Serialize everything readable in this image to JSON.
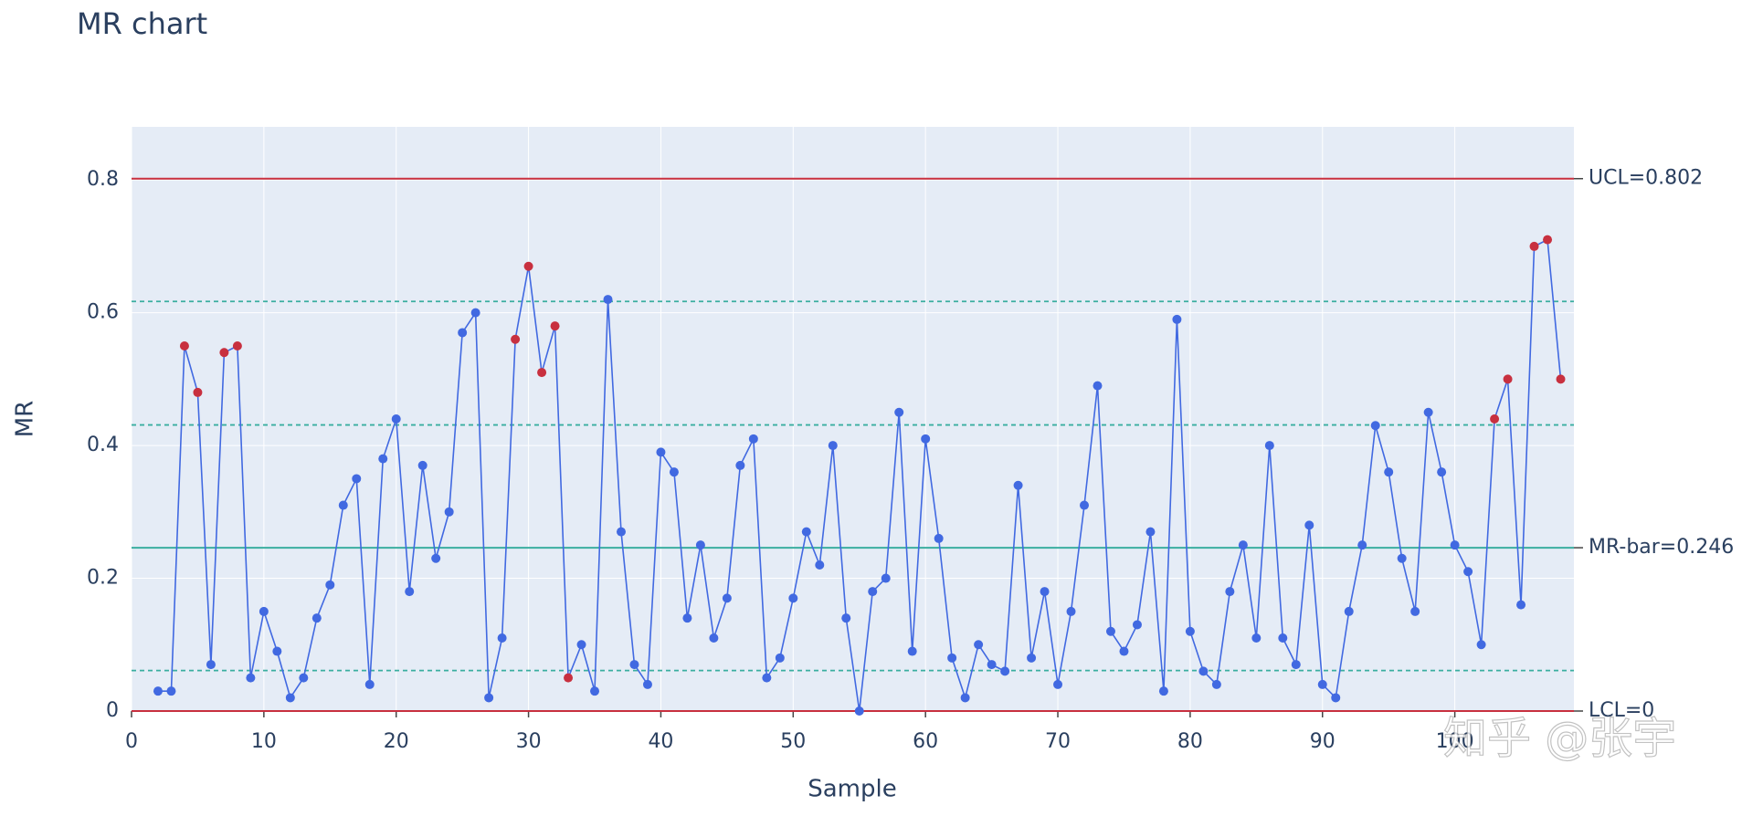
{
  "chart_data": {
    "type": "line",
    "title": "MR chart",
    "x_label": "Sample",
    "y_label": "MR",
    "x": [
      2,
      3,
      4,
      5,
      6,
      7,
      8,
      9,
      10,
      11,
      12,
      13,
      14,
      15,
      16,
      17,
      18,
      19,
      20,
      21,
      22,
      23,
      24,
      25,
      26,
      27,
      28,
      29,
      30,
      31,
      32,
      33,
      34,
      35,
      36,
      37,
      38,
      39,
      40,
      41,
      42,
      43,
      44,
      45,
      46,
      47,
      48,
      49,
      50,
      51,
      52,
      53,
      54,
      55,
      56,
      57,
      58,
      59,
      60,
      61,
      62,
      63,
      64,
      65,
      66,
      67,
      68,
      69,
      70,
      71,
      72,
      73,
      74,
      75,
      76,
      77,
      78,
      79,
      80,
      81,
      82,
      83,
      84,
      85,
      86,
      87,
      88,
      89,
      90,
      91,
      92,
      93,
      94,
      95,
      96,
      97,
      98,
      99,
      100,
      101,
      102,
      103,
      104,
      105,
      106,
      107,
      108
    ],
    "series": [
      {
        "color": "#4169e1",
        "values": [
          0.03,
          0.03,
          0.55,
          0.48,
          0.07,
          0.54,
          0.55,
          0.05,
          0.15,
          0.09,
          0.02,
          0.05,
          0.14,
          0.19,
          0.31,
          0.35,
          0.04,
          0.38,
          0.44,
          0.18,
          0.37,
          0.23,
          0.3,
          0.57,
          0.6,
          0.02,
          0.11,
          0.56,
          0.67,
          0.51,
          0.58,
          0.05,
          0.1,
          0.03,
          0.62,
          0.27,
          0.07,
          0.04,
          0.39,
          0.36,
          0.14,
          0.25,
          0.11,
          0.17,
          0.37,
          0.41,
          0.05,
          0.08,
          0.17,
          0.27,
          0.22,
          0.4,
          0.14,
          0.0,
          0.18,
          0.2,
          0.45,
          0.09,
          0.41,
          0.26,
          0.08,
          0.02,
          0.1,
          0.07,
          0.06,
          0.34,
          0.08,
          0.18,
          0.04,
          0.15,
          0.31,
          0.49,
          0.12,
          0.09,
          0.13,
          0.27,
          0.03,
          0.59,
          0.12,
          0.06,
          0.04,
          0.18,
          0.25,
          0.11,
          0.4,
          0.11,
          0.07,
          0.28,
          0.04,
          0.02,
          0.15,
          0.25,
          0.43,
          0.36,
          0.23,
          0.15,
          0.45,
          0.36,
          0.25,
          0.21,
          0.1,
          0.44,
          0.5,
          0.16,
          0.7,
          0.71,
          0.5
        ],
        "marker_colors": [
          "#4169e1",
          "#4169e1",
          "#c8303f",
          "#c8303f",
          "#4169e1",
          "#c8303f",
          "#c8303f",
          "#4169e1",
          "#4169e1",
          "#4169e1",
          "#4169e1",
          "#4169e1",
          "#4169e1",
          "#4169e1",
          "#4169e1",
          "#4169e1",
          "#4169e1",
          "#4169e1",
          "#4169e1",
          "#4169e1",
          "#4169e1",
          "#4169e1",
          "#4169e1",
          "#4169e1",
          "#4169e1",
          "#4169e1",
          "#4169e1",
          "#c8303f",
          "#c8303f",
          "#c8303f",
          "#c8303f",
          "#c8303f",
          "#4169e1",
          "#4169e1",
          "#4169e1",
          "#4169e1",
          "#4169e1",
          "#4169e1",
          "#4169e1",
          "#4169e1",
          "#4169e1",
          "#4169e1",
          "#4169e1",
          "#4169e1",
          "#4169e1",
          "#4169e1",
          "#4169e1",
          "#4169e1",
          "#4169e1",
          "#4169e1",
          "#4169e1",
          "#4169e1",
          "#4169e1",
          "#4169e1",
          "#4169e1",
          "#4169e1",
          "#4169e1",
          "#4169e1",
          "#4169e1",
          "#4169e1",
          "#4169e1",
          "#4169e1",
          "#4169e1",
          "#4169e1",
          "#4169e1",
          "#4169e1",
          "#4169e1",
          "#4169e1",
          "#4169e1",
          "#4169e1",
          "#4169e1",
          "#4169e1",
          "#4169e1",
          "#4169e1",
          "#4169e1",
          "#4169e1",
          "#4169e1",
          "#4169e1",
          "#4169e1",
          "#4169e1",
          "#4169e1",
          "#4169e1",
          "#4169e1",
          "#4169e1",
          "#4169e1",
          "#4169e1",
          "#4169e1",
          "#4169e1",
          "#4169e1",
          "#4169e1",
          "#4169e1",
          "#4169e1",
          "#4169e1",
          "#4169e1",
          "#4169e1",
          "#4169e1",
          "#4169e1",
          "#4169e1",
          "#4169e1",
          "#4169e1",
          "#4169e1",
          "#c8303f",
          "#c8303f",
          "#4169e1",
          "#c8303f",
          "#c8303f",
          "#c8303f"
        ]
      }
    ],
    "control_lines": [
      {
        "value": 0.802,
        "label": "UCL=0.802",
        "color": "#c8303f"
      },
      {
        "value": 0.246,
        "label": "MR-bar=0.246",
        "color": "#3aaea0"
      },
      {
        "value": 0,
        "label": "LCL=0",
        "color": "#c8303f"
      }
    ],
    "zone_lines": {
      "values": [
        0.617,
        0.431,
        0.061
      ],
      "color": "#3aaea0"
    },
    "xlim": [
      0,
      109
    ],
    "ylim": [
      0,
      0.88
    ],
    "xticks": [
      0,
      10,
      20,
      30,
      40,
      50,
      60,
      70,
      80,
      90,
      100
    ],
    "yticks": [
      0,
      0.2,
      0.4,
      0.6,
      0.8
    ],
    "grid": true,
    "watermark": "知乎 @张宇"
  }
}
